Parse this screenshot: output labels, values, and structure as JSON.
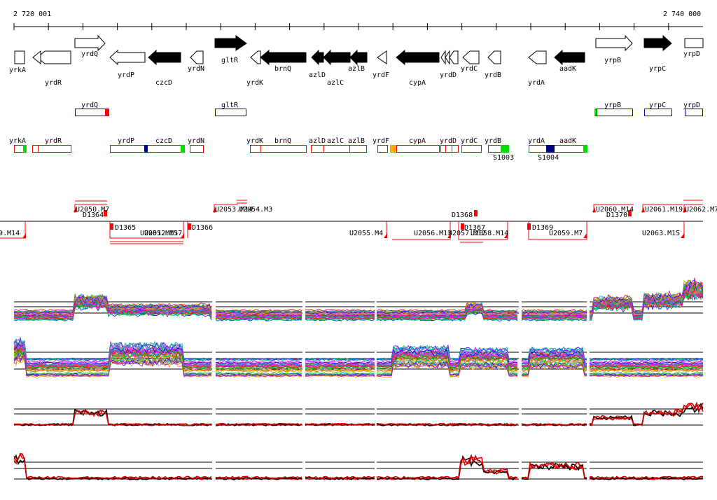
{
  "ruler": {
    "start_label": "2 720 001",
    "end_label": "2 740 000"
  },
  "genes": [
    {
      "name": "yrkA",
      "fill": "white"
    },
    {
      "name": "yrdR",
      "fill": "white"
    },
    {
      "name": "yrdQ",
      "fill": "white"
    },
    {
      "name": "yrdP",
      "fill": "white"
    },
    {
      "name": "czcD",
      "fill": "black"
    },
    {
      "name": "yrdN",
      "fill": "white"
    },
    {
      "name": "gltR",
      "fill": "black"
    },
    {
      "name": "yrdK",
      "fill": "white"
    },
    {
      "name": "brnQ",
      "fill": "black"
    },
    {
      "name": "azlD",
      "fill": "black"
    },
    {
      "name": "azlC",
      "fill": "black"
    },
    {
      "name": "azlB",
      "fill": "black"
    },
    {
      "name": "yrdF",
      "fill": "white"
    },
    {
      "name": "cypA",
      "fill": "black"
    },
    {
      "name": "yrdD",
      "fill": "white"
    },
    {
      "name": "yrdC",
      "fill": "white"
    },
    {
      "name": "yrdB",
      "fill": "white"
    },
    {
      "name": "yrdA",
      "fill": "white"
    },
    {
      "name": "aadK",
      "fill": "black"
    },
    {
      "name": "yrpB",
      "fill": "white"
    },
    {
      "name": "yrpC",
      "fill": "black"
    },
    {
      "name": "yrpD",
      "fill": "white"
    }
  ],
  "operons_forward": [
    "yrdQ",
    "gltR",
    "yrpB",
    "yrpC",
    "yrpD"
  ],
  "operons_reverse": [
    "yrkA",
    "yrdR",
    "yrdP",
    "czcD",
    "yrdN",
    "yrdK",
    "brnQ",
    "azlD",
    "azlC",
    "azlB",
    "yrdF",
    "cypA",
    "yrdD",
    "yrdC",
    "yrdB",
    "yrdA",
    "aadK"
  ],
  "operon_markers": [
    "S1003",
    "S1004"
  ],
  "segments_upper": [
    "U2050.M7",
    "D1364",
    "U2053.M14",
    "U2054.M3",
    "D1368",
    "U2060.M14",
    "D1370",
    "U2061.M19",
    "U2062.M7"
  ],
  "segments_lower": [
    "9.M14",
    "D1365",
    "U2051.M15",
    "U2052.M17",
    "D1366",
    "U2055.M4",
    "U2056.M13",
    "U2057.M12",
    "D1367",
    "U2058.M14",
    "D1369",
    "U2059.M7",
    "U2063.M15"
  ],
  "colors": {
    "red": "#ff0000",
    "blue": "#0000cc",
    "green": "#00dd00",
    "orange": "#ffaa00",
    "navy": "#000080"
  }
}
